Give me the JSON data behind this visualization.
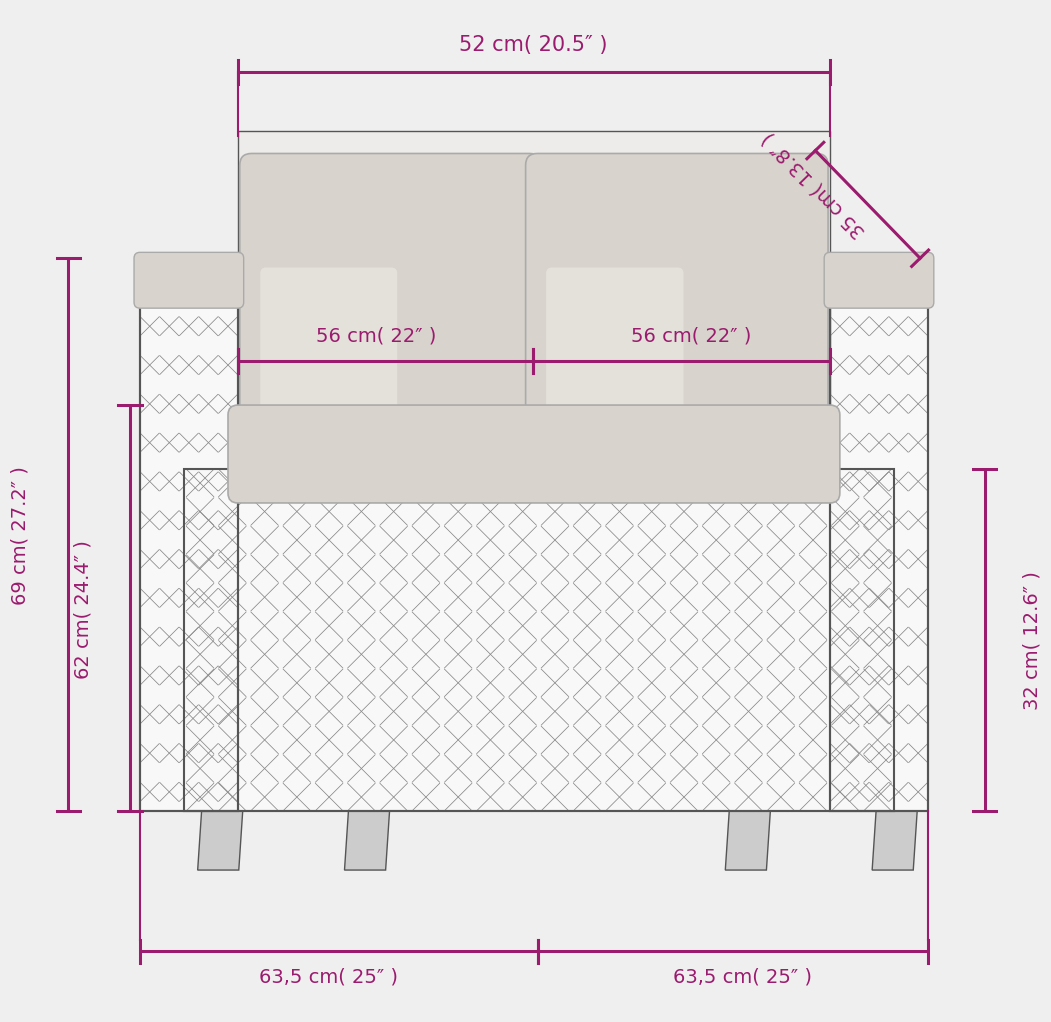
{
  "bg_color": "#f0eff0",
  "annotation_color": "#9b1b6e",
  "sketch_color": "#555555",
  "sketch_fill": "#e8e8e8",
  "cushion_fill": "#dddbd8",
  "measurements": {
    "top_width": "52 cm( 20.5″ )",
    "seat_left": "56 cm( 22″ )",
    "seat_right": "56 cm( 22″ )",
    "backrest_h": "35 cm( 13.8″ )",
    "total_h": "69 cm( 27.2″ )",
    "seat_h": "62 cm( 24.4″ )",
    "frame_h": "32 cm( 12.6″ )",
    "depth_left": "63,5 cm( 25″ )",
    "depth_right": "63,5 cm( 25″ )"
  },
  "font_size": 14
}
